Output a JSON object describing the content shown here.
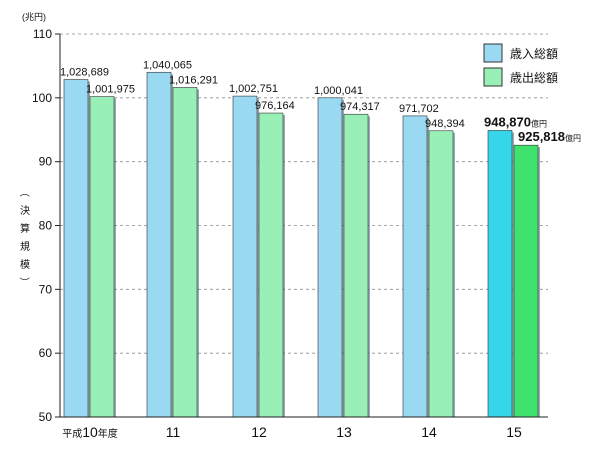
{
  "chart_data": {
    "type": "bar",
    "unit_label": "(兆円)",
    "ylabel": "（決算規模）",
    "ylim": [
      50,
      110
    ],
    "yticks": [
      50,
      60,
      70,
      80,
      90,
      100,
      110
    ],
    "grid": "horizontal dashed",
    "categories": [
      {
        "prefix": "平成",
        "value": "10",
        "suffix": "年度"
      },
      {
        "prefix": "",
        "value": "11",
        "suffix": ""
      },
      {
        "prefix": "",
        "value": "12",
        "suffix": ""
      },
      {
        "prefix": "",
        "value": "13",
        "suffix": ""
      },
      {
        "prefix": "",
        "value": "14",
        "suffix": ""
      },
      {
        "prefix": "",
        "value": "15",
        "suffix": ""
      }
    ],
    "series": [
      {
        "name": "歳入総額",
        "color": "#99d9f2",
        "highlight_color": "#36d6ea",
        "values": [
          102.8689,
          104.0065,
          100.2751,
          100.0041,
          97.1702,
          94.887
        ],
        "labels": [
          "1,028,689",
          "1,040,065",
          "1,002,751",
          "1,000,041",
          "971,702",
          "948,870"
        ]
      },
      {
        "name": "歳出総額",
        "color": "#99f0b6",
        "highlight_color": "#3ee26d",
        "values": [
          100.1975,
          101.6291,
          97.6164,
          97.4317,
          94.8394,
          92.5818
        ],
        "labels": [
          "1,001,975",
          "1,016,291",
          "976,164",
          "974,317",
          "948,394",
          "925,818"
        ]
      }
    ],
    "highlight_index": 5,
    "highlight_unit_suffix": "億円",
    "legend_position": "top-right"
  }
}
